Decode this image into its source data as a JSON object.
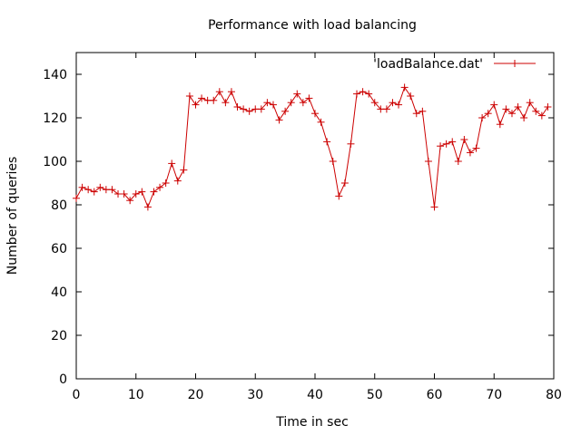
{
  "chart_data": {
    "type": "line",
    "title": "Performance with load balancing",
    "xlabel": "Time in sec",
    "ylabel": "Number of queries",
    "xlim": [
      0,
      80
    ],
    "ylim": [
      0,
      150
    ],
    "xticks": [
      0,
      10,
      20,
      30,
      40,
      50,
      60,
      70,
      80
    ],
    "yticks": [
      0,
      20,
      40,
      60,
      80,
      100,
      120,
      140
    ],
    "grid": false,
    "legend": "top-right",
    "series": [
      {
        "name": "'loadBalance.dat'",
        "color": "#cc0000",
        "marker": "plus",
        "x": [
          0,
          1,
          2,
          3,
          4,
          5,
          6,
          7,
          8,
          9,
          10,
          11,
          12,
          13,
          14,
          15,
          16,
          17,
          18,
          19,
          20,
          21,
          22,
          23,
          24,
          25,
          26,
          27,
          28,
          29,
          30,
          31,
          32,
          33,
          34,
          35,
          36,
          37,
          38,
          39,
          40,
          41,
          42,
          43,
          44,
          45,
          46,
          47,
          48,
          49,
          50,
          51,
          52,
          53,
          54,
          55,
          56,
          57,
          58,
          59,
          60,
          61,
          62,
          63,
          64,
          65,
          66,
          67,
          68,
          69,
          70,
          71,
          72,
          73,
          74,
          75,
          76,
          77,
          78,
          79
        ],
        "y": [
          83,
          88,
          87,
          86,
          88,
          87,
          87,
          85,
          85,
          82,
          85,
          86,
          79,
          86,
          88,
          90,
          99,
          91,
          96,
          130,
          126,
          129,
          128,
          128,
          132,
          127,
          132,
          125,
          124,
          123,
          124,
          124,
          127,
          126,
          119,
          123,
          127,
          131,
          127,
          129,
          122,
          118,
          109,
          100,
          84,
          90,
          108,
          131,
          132,
          131,
          127,
          124,
          124,
          127,
          126,
          134,
          130,
          122,
          123,
          100,
          79,
          107,
          108,
          109,
          100,
          110,
          104,
          106,
          120,
          122,
          126,
          117,
          124,
          122,
          125,
          120,
          127,
          123,
          121,
          125
        ]
      }
    ]
  }
}
